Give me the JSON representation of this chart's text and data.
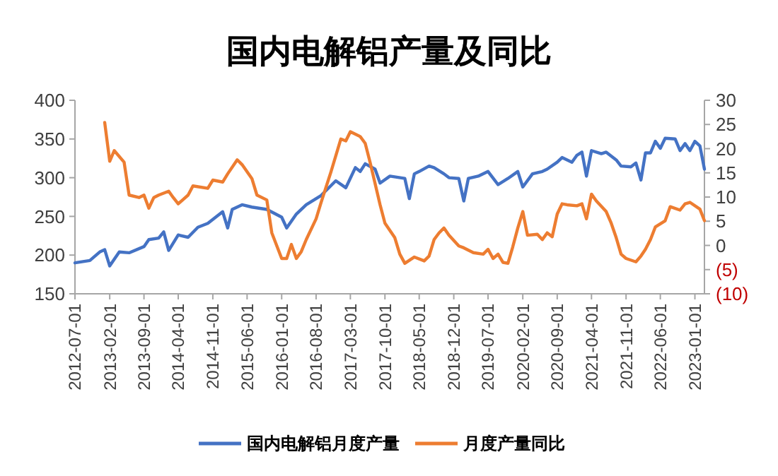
{
  "chart_data": {
    "type": "line",
    "title": "国内电解铝产量及同比",
    "xlim": [
      "2012-07-01",
      "2023-03-01"
    ],
    "xticks": [
      "2012-07-01",
      "2013-02-01",
      "2013-09-01",
      "2014-04-01",
      "2014-11-01",
      "2015-06-01",
      "2016-01-01",
      "2016-08-01",
      "2017-03-01",
      "2017-10-01",
      "2018-05-01",
      "2018-12-01",
      "2019-07-01",
      "2020-02-01",
      "2020-09-01",
      "2021-04-01",
      "2021-11-01",
      "2022-06-01",
      "2023-01-01"
    ],
    "ylim": [
      150,
      400
    ],
    "yticks": [
      150,
      200,
      250,
      300,
      350,
      400
    ],
    "y2lim": [
      -10,
      30
    ],
    "y2ticks": [
      {
        "value": -10,
        "label": "(10)"
      },
      {
        "value": -5,
        "label": "(5)"
      },
      0,
      5,
      10,
      15,
      20,
      25,
      30
    ],
    "legend": "bottom",
    "grid": false,
    "marker": "none",
    "line_style": "solid",
    "series": [
      {
        "name": "国内电解铝月度产量",
        "color": "#4472c4",
        "axis": "y",
        "x": [
          "2012-07",
          "2012-10",
          "2012-12",
          "2013-01",
          "2013-02",
          "2013-04",
          "2013-06",
          "2013-09",
          "2013-10",
          "2013-12",
          "2014-01",
          "2014-02",
          "2014-04",
          "2014-06",
          "2014-08",
          "2014-10",
          "2015-01",
          "2015-02",
          "2015-03",
          "2015-05",
          "2015-07",
          "2015-10",
          "2016-01",
          "2016-02",
          "2016-04",
          "2016-06",
          "2016-09",
          "2016-12",
          "2017-02",
          "2017-04",
          "2017-05",
          "2017-06",
          "2017-08",
          "2017-09",
          "2017-11",
          "2018-02",
          "2018-03",
          "2018-04",
          "2018-05",
          "2018-07",
          "2018-08",
          "2018-10",
          "2018-11",
          "2019-01",
          "2019-02",
          "2019-03",
          "2019-05",
          "2019-07",
          "2019-09",
          "2019-11",
          "2020-01",
          "2020-02",
          "2020-04",
          "2020-06",
          "2020-07",
          "2020-09",
          "2020-10",
          "2020-12",
          "2021-01",
          "2021-02",
          "2021-03",
          "2021-04",
          "2021-06",
          "2021-07",
          "2021-09",
          "2021-10",
          "2021-12",
          "2022-01",
          "2022-02",
          "2022-03",
          "2022-04",
          "2022-05",
          "2022-06",
          "2022-07",
          "2022-09",
          "2022-10",
          "2022-11",
          "2022-12",
          "2023-01",
          "2023-02",
          "2023-03"
        ],
        "values": [
          190,
          193,
          204,
          207,
          186,
          204,
          203,
          211,
          220,
          222,
          230,
          206,
          226,
          223,
          236,
          241,
          256,
          235,
          259,
          265,
          262,
          259,
          249,
          235,
          253,
          265,
          277,
          296,
          287,
          313,
          308,
          318,
          311,
          293,
          302,
          299,
          273,
          305,
          308,
          315,
          313,
          305,
          300,
          299,
          270,
          299,
          302,
          308,
          291,
          299,
          308,
          288,
          305,
          308,
          311,
          320,
          326,
          320,
          329,
          333,
          302,
          335,
          331,
          333,
          323,
          315,
          314,
          319,
          297,
          332,
          332,
          347,
          338,
          351,
          350,
          335,
          344,
          335,
          347,
          341,
          311
        ]
      },
      {
        "name": "月度产量同比",
        "color": "#ed7d31",
        "axis": "y2",
        "x": [
          "2013-01",
          "2013-02",
          "2013-03",
          "2013-05",
          "2013-06",
          "2013-08",
          "2013-09",
          "2013-10",
          "2013-11",
          "2013-12",
          "2014-02",
          "2014-03",
          "2014-04",
          "2014-06",
          "2014-07",
          "2014-10",
          "2014-11",
          "2015-01",
          "2015-02",
          "2015-04",
          "2015-05",
          "2015-07",
          "2015-08",
          "2015-10",
          "2015-11",
          "2016-01",
          "2016-02",
          "2016-03",
          "2016-04",
          "2016-05",
          "2016-06",
          "2016-08",
          "2016-09",
          "2016-11",
          "2017-01",
          "2017-02",
          "2017-03",
          "2017-05",
          "2017-06",
          "2017-07",
          "2017-09",
          "2017-10",
          "2017-12",
          "2018-01",
          "2018-02",
          "2018-04",
          "2018-06",
          "2018-07",
          "2018-08",
          "2018-09",
          "2018-10",
          "2018-11",
          "2019-01",
          "2019-02",
          "2019-04",
          "2019-06",
          "2019-07",
          "2019-08",
          "2019-09",
          "2019-10",
          "2019-11",
          "2019-12",
          "2020-01",
          "2020-02",
          "2020-03",
          "2020-05",
          "2020-06",
          "2020-07",
          "2020-08",
          "2020-09",
          "2020-10",
          "2020-11",
          "2021-01",
          "2021-02",
          "2021-03",
          "2021-04",
          "2021-05",
          "2021-07",
          "2021-08",
          "2021-09",
          "2021-10",
          "2021-11",
          "2022-01",
          "2022-02",
          "2022-03",
          "2022-04",
          "2022-05",
          "2022-07",
          "2022-08",
          "2022-10",
          "2022-11",
          "2022-12",
          "2023-02",
          "2023-03"
        ],
        "values": [
          25.4,
          17.4,
          19.6,
          17.2,
          10.4,
          9.9,
          10.4,
          7.7,
          9.9,
          10.4,
          11.2,
          9.9,
          8.6,
          10.4,
          12.3,
          11.8,
          13.5,
          13.1,
          14.8,
          17.7,
          16.7,
          13.8,
          10.4,
          9.4,
          2.6,
          -2.7,
          -2.7,
          0.2,
          -2.7,
          -1.3,
          1.2,
          5.5,
          8.9,
          15.2,
          22,
          21.6,
          23.5,
          22.5,
          21.1,
          17.2,
          8.4,
          4.6,
          1.6,
          -1.8,
          -3.7,
          -2.4,
          -3.2,
          -2.2,
          1.2,
          2.6,
          3.6,
          2.1,
          -0.1,
          -0.5,
          -1.5,
          -1.8,
          -0.8,
          -2.7,
          -1.8,
          -3.5,
          -3.7,
          -0.3,
          3.6,
          7.0,
          2.1,
          2.3,
          1.2,
          2.6,
          1.8,
          6.5,
          8.6,
          8.4,
          8.2,
          8.6,
          5.5,
          10.6,
          9.2,
          7,
          4.6,
          1.6,
          -1.8,
          -2.7,
          -3.4,
          -2.2,
          -0.8,
          1.2,
          3.8,
          5.1,
          8,
          7.3,
          8.6,
          8.9,
          7.5,
          5.1
        ]
      }
    ]
  }
}
